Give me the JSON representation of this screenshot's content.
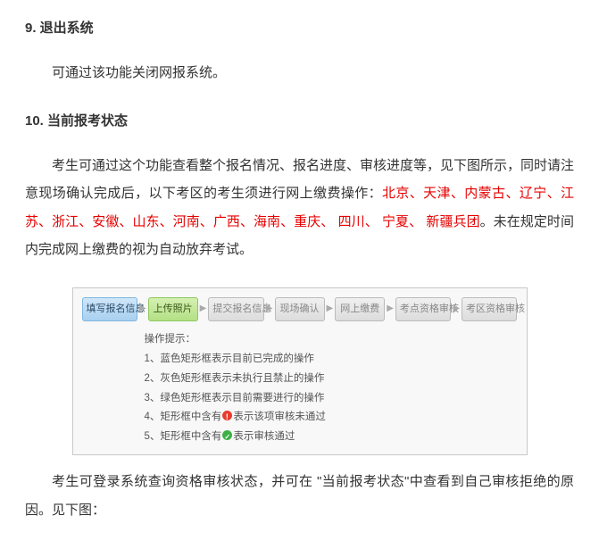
{
  "section9": {
    "title": "9. 退出系统",
    "body": "可通过该功能关闭网报系统。"
  },
  "section10": {
    "title": "10. 当前报考状态",
    "body_pre": "考生可通过这个功能查看整个报名情况、报名进度、审核进度等，见下图所示，同时请注意现场确认完成后，以下考区的考生须进行网上缴费操作：",
    "red_list": "北京、天津、内蒙古、辽宁、江苏、浙江、安徽、山东、河南、广西、海南、重庆、 四川、 宁夏、 新疆兵团",
    "body_post": "。未在规定时间内完成网上缴费的视为自动放弃考试。",
    "footer": "考生可登录系统查询资格审核状态，并可在 \"当前报考状态\"中查看到自己审核拒绝的原因。见下图："
  },
  "diagram": {
    "steps": [
      {
        "label": "填写报名信息",
        "style": "blue"
      },
      {
        "label": "上传照片",
        "style": "green"
      },
      {
        "label": "提交报名信息",
        "style": "gray"
      },
      {
        "label": "现场确认",
        "style": "gray"
      },
      {
        "label": "网上缴费",
        "style": "gray"
      },
      {
        "label": "考点资格审核",
        "style": "gray"
      },
      {
        "label": "考区资格审核",
        "style": "gray"
      }
    ],
    "hints_title": "操作提示：",
    "hints": [
      "1、蓝色矩形框表示目前已完成的操作",
      "2、灰色矩形框表示未执行且禁止的操作",
      "3、绿色矩形框表示目前需要进行的操作",
      "4、矩形框中含有",
      "表示该项审核未通过",
      "5、矩形框中含有",
      "表示审核通过"
    ]
  },
  "colors": {
    "red_text": "#e60000",
    "border": "#c8c8c8",
    "bg_box": "#f8f8f8"
  }
}
